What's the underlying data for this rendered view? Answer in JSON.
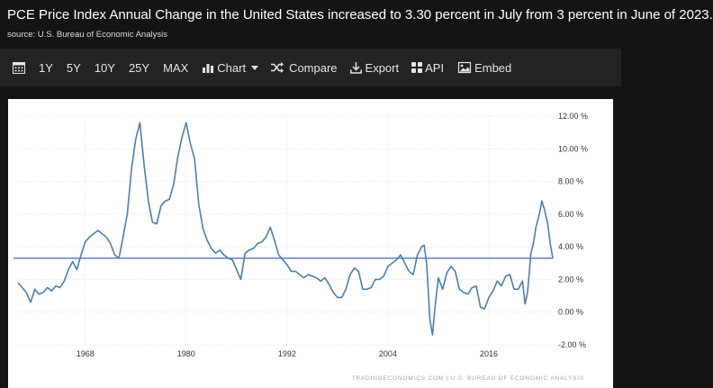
{
  "header": {
    "title": "PCE Price Index Annual Change in the United States increased to 3.30 percent in July from 3 percent in June of 2023.",
    "source": "source: U.S. Bureau of Economic Analysis"
  },
  "toolbar": {
    "ranges": [
      "1Y",
      "5Y",
      "10Y",
      "25Y",
      "MAX"
    ],
    "chart_label": "Chart",
    "compare_label": "Compare",
    "export_label": "Export",
    "api_label": "API",
    "embed_label": "Embed"
  },
  "footer": {
    "attribution": "TRADINGECONOMICS.COM | U.S. BUREAU OF ECONOMIC ANALYSIS"
  },
  "colors": {
    "line": "#4a7fb0",
    "reference_line": "#1f3f9a",
    "grid": "#d8d8d8",
    "axis_text": "#333333"
  },
  "chart_data": {
    "type": "line",
    "title": "PCE Price Index Annual Change in the United States",
    "xlabel": "",
    "ylabel": "",
    "xlim": [
      1960,
      2023.6
    ],
    "ylim": [
      -2,
      12
    ],
    "x_ticks": [
      1968,
      1980,
      1992,
      2004,
      2016
    ],
    "x_tick_labels": [
      "1968",
      "1980",
      "1992",
      "2004",
      "2016"
    ],
    "y_ticks": [
      12,
      10,
      8,
      6,
      4,
      2,
      0,
      -2
    ],
    "y_tick_labels": [
      "12.00 %",
      "10.00 %",
      "8.00 %",
      "6.00 %",
      "4.00 %",
      "2.00 %",
      "0.00 %",
      "-2.00 %"
    ],
    "grid": true,
    "reference_line": {
      "value": 3.3,
      "label": ""
    },
    "series": [
      {
        "name": "PCE Price Index Annual Change",
        "x": [
          1960.0,
          1960.5,
          1961.0,
          1961.5,
          1962.0,
          1962.5,
          1963.0,
          1963.5,
          1964.0,
          1964.5,
          1965.0,
          1965.5,
          1966.0,
          1966.5,
          1967.0,
          1967.5,
          1968.0,
          1968.5,
          1969.0,
          1969.5,
          1970.0,
          1970.5,
          1971.0,
          1971.5,
          1972.0,
          1972.5,
          1973.0,
          1973.5,
          1974.0,
          1974.5,
          1975.0,
          1975.5,
          1976.0,
          1976.5,
          1977.0,
          1977.5,
          1978.0,
          1978.5,
          1979.0,
          1979.5,
          1980.0,
          1980.5,
          1981.0,
          1981.5,
          1982.0,
          1982.5,
          1983.0,
          1983.5,
          1984.0,
          1984.5,
          1985.0,
          1985.5,
          1986.0,
          1986.5,
          1987.0,
          1987.5,
          1988.0,
          1988.5,
          1989.0,
          1989.5,
          1990.0,
          1990.5,
          1991.0,
          1991.5,
          1992.0,
          1992.5,
          1993.0,
          1993.5,
          1994.0,
          1994.5,
          1995.0,
          1995.5,
          1996.0,
          1996.5,
          1997.0,
          1997.5,
          1998.0,
          1998.5,
          1999.0,
          1999.5,
          2000.0,
          2000.5,
          2001.0,
          2001.5,
          2002.0,
          2002.5,
          2003.0,
          2003.5,
          2004.0,
          2004.5,
          2005.0,
          2005.5,
          2006.0,
          2006.5,
          2007.0,
          2007.5,
          2008.0,
          2008.3,
          2008.6,
          2009.0,
          2009.3,
          2009.6,
          2010.0,
          2010.5,
          2011.0,
          2011.5,
          2012.0,
          2012.5,
          2013.0,
          2013.5,
          2014.0,
          2014.5,
          2015.0,
          2015.5,
          2016.0,
          2016.5,
          2017.0,
          2017.5,
          2018.0,
          2018.5,
          2019.0,
          2019.5,
          2020.0,
          2020.3,
          2020.6,
          2021.0,
          2021.3,
          2021.6,
          2022.0,
          2022.3,
          2022.6,
          2023.0,
          2023.3,
          2023.6
        ],
        "values": [
          1.8,
          1.5,
          1.2,
          0.6,
          1.4,
          1.1,
          1.2,
          1.5,
          1.3,
          1.6,
          1.5,
          1.9,
          2.6,
          3.1,
          2.6,
          3.5,
          4.3,
          4.6,
          4.8,
          5.0,
          4.8,
          4.6,
          4.2,
          3.5,
          3.3,
          4.6,
          6.0,
          8.8,
          10.6,
          11.6,
          9.0,
          6.8,
          5.5,
          5.4,
          6.5,
          6.8,
          6.9,
          7.8,
          9.5,
          10.7,
          11.6,
          10.3,
          9.4,
          6.6,
          5.1,
          4.4,
          3.9,
          3.6,
          3.8,
          3.5,
          3.3,
          3.2,
          2.6,
          2.0,
          3.6,
          3.8,
          3.9,
          4.2,
          4.3,
          4.6,
          5.2,
          4.4,
          3.5,
          3.2,
          2.9,
          2.5,
          2.5,
          2.3,
          2.1,
          2.3,
          2.2,
          2.1,
          1.9,
          2.1,
          1.7,
          1.2,
          0.9,
          0.9,
          1.4,
          2.3,
          2.7,
          2.5,
          1.4,
          1.4,
          1.5,
          2.0,
          2.0,
          2.2,
          2.8,
          3.0,
          3.2,
          3.5,
          3.0,
          2.5,
          2.3,
          3.5,
          4.0,
          4.1,
          3.0,
          -0.5,
          -1.4,
          0.3,
          2.1,
          1.4,
          2.4,
          2.8,
          2.5,
          1.4,
          1.2,
          1.1,
          1.5,
          1.6,
          0.3,
          0.2,
          0.9,
          1.3,
          1.9,
          1.6,
          2.2,
          2.3,
          1.4,
          1.4,
          1.9,
          0.5,
          1.2,
          3.6,
          4.2,
          5.2,
          6.0,
          6.8,
          6.3,
          5.4,
          4.2,
          3.3
        ]
      }
    ]
  }
}
